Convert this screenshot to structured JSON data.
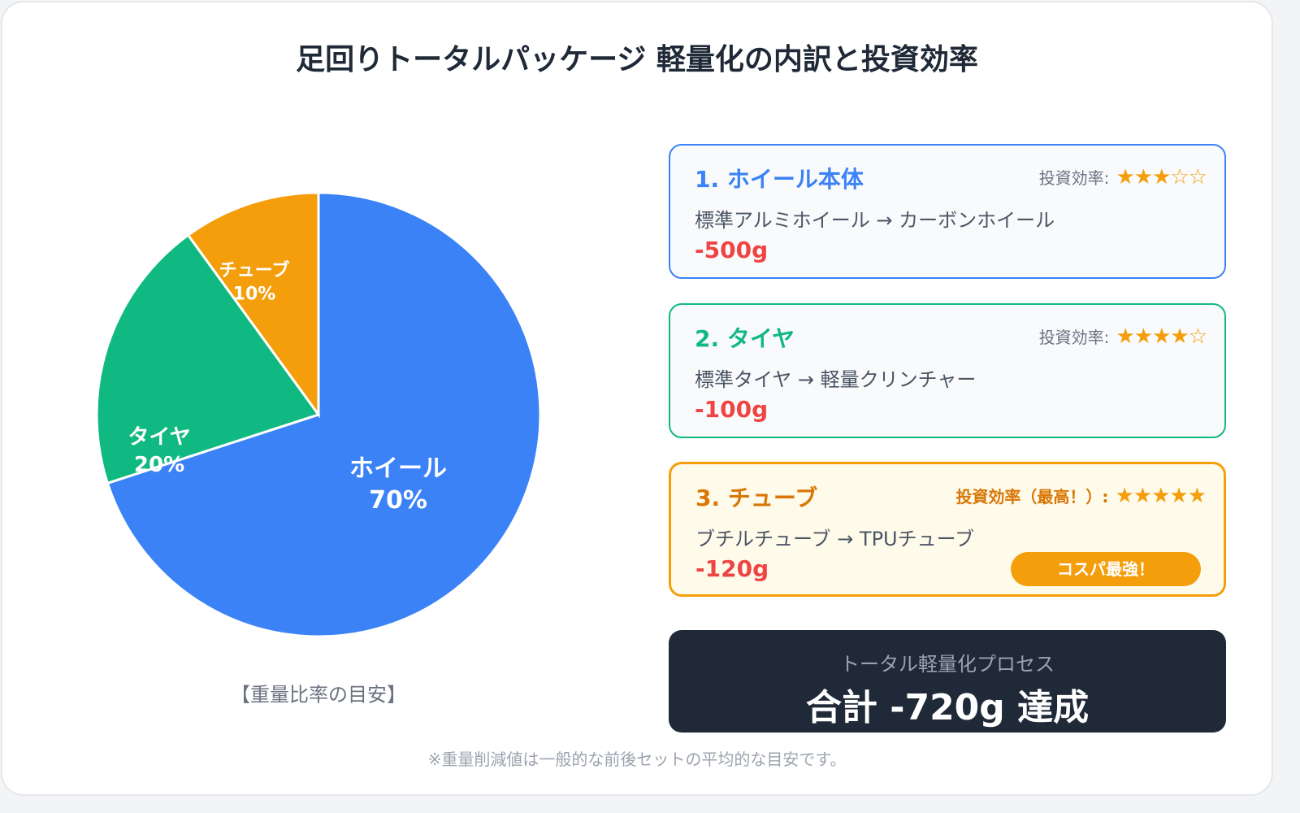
{
  "title": "足回りトータルパッケージ 軽量化の内訳と投資効率",
  "chart_data": {
    "type": "pie",
    "categories": [
      "ホイール",
      "タイヤ",
      "チューブ"
    ],
    "values": [
      70,
      20,
      10
    ],
    "labels": [
      "70%",
      "20%",
      "10%"
    ],
    "colors": [
      "#3b82f6",
      "#10b981",
      "#f59e0b"
    ],
    "start": "top",
    "direction": "clockwise",
    "caption": "【重量比率の目安】"
  },
  "cards": [
    {
      "title": "1. ホイール本体",
      "desc": "標準アルミホイール → カーボンホイール",
      "weight": "-500g",
      "rating_label": "投資効率:",
      "rating": 3,
      "color": "#3b82f6",
      "bg": "#f8fafc"
    },
    {
      "title": "2. タイヤ",
      "desc": "標準タイヤ → 軽量クリンチャー",
      "weight": "-100g",
      "rating_label": "投資効率:",
      "rating": 4,
      "color": "#10b981",
      "bg": "#f8fafc"
    },
    {
      "title": "3. チューブ",
      "desc": "ブチルチューブ → TPUチューブ",
      "weight": "-120g",
      "rating_label": "投資効率（最高！）:",
      "rating": 5,
      "color": "#f59e0b",
      "title_color": "#d97706",
      "bg": "#fffbeb",
      "badge": "コスパ最強！"
    }
  ],
  "total": {
    "sub": "トータル軽量化プロセス",
    "main": "合計 -720g 達成"
  },
  "footnote": "※重量削減値は一般的な前後セットの平均的な目安です。"
}
